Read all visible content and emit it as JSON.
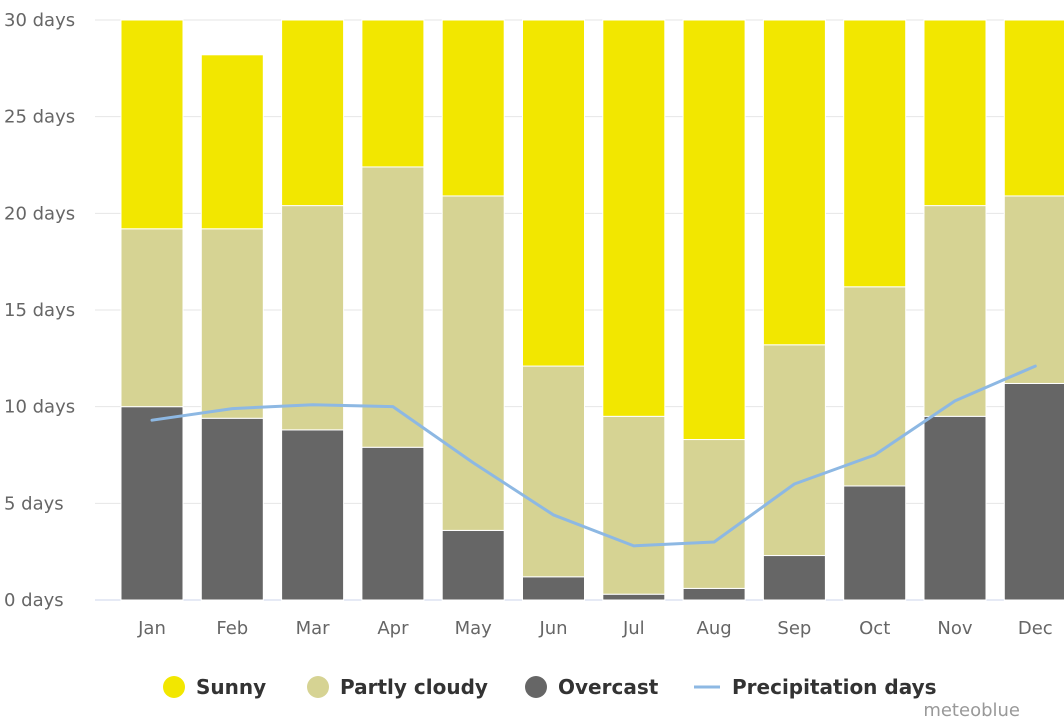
{
  "chart_data": {
    "type": "bar",
    "stacked": true,
    "categories": [
      "Jan",
      "Feb",
      "Mar",
      "Apr",
      "May",
      "Jun",
      "Jul",
      "Aug",
      "Sep",
      "Oct",
      "Nov",
      "Dec"
    ],
    "series": [
      {
        "name": "Overcast",
        "color": "#666666",
        "values": [
          10.0,
          9.4,
          8.8,
          7.9,
          3.6,
          1.2,
          0.3,
          0.6,
          2.3,
          5.9,
          9.5,
          11.2
        ]
      },
      {
        "name": "Partly cloudy",
        "color": "#d6d393",
        "values": [
          9.2,
          9.8,
          11.6,
          14.5,
          17.3,
          10.9,
          9.2,
          7.7,
          10.9,
          10.3,
          10.9,
          9.7
        ]
      },
      {
        "name": "Sunny",
        "color": "#f2e700",
        "values": [
          10.8,
          9.0,
          9.6,
          7.6,
          9.1,
          17.9,
          20.5,
          21.7,
          16.8,
          13.8,
          9.6,
          9.1
        ]
      }
    ],
    "line_series": {
      "name": "Precipitation days",
      "color": "#8db8e3",
      "values": [
        9.3,
        9.9,
        10.1,
        10.0,
        7.1,
        4.4,
        2.8,
        3.0,
        6.0,
        7.5,
        10.3,
        12.1
      ]
    },
    "ylim": [
      0,
      30
    ],
    "yticks": [
      0,
      5,
      10,
      15,
      20,
      25,
      30
    ],
    "ytick_labels": [
      "0 days",
      "5 days",
      "10 days",
      "15 days",
      "20 days",
      "25 days",
      "30 days"
    ],
    "grid": true,
    "legend_position": "bottom-center",
    "title": "",
    "xlabel": "",
    "ylabel": ""
  },
  "legend": {
    "sunny": "Sunny",
    "partly_cloudy": "Partly cloudy",
    "overcast": "Overcast",
    "precipitation": "Precipitation days"
  },
  "credit": "meteoblue"
}
